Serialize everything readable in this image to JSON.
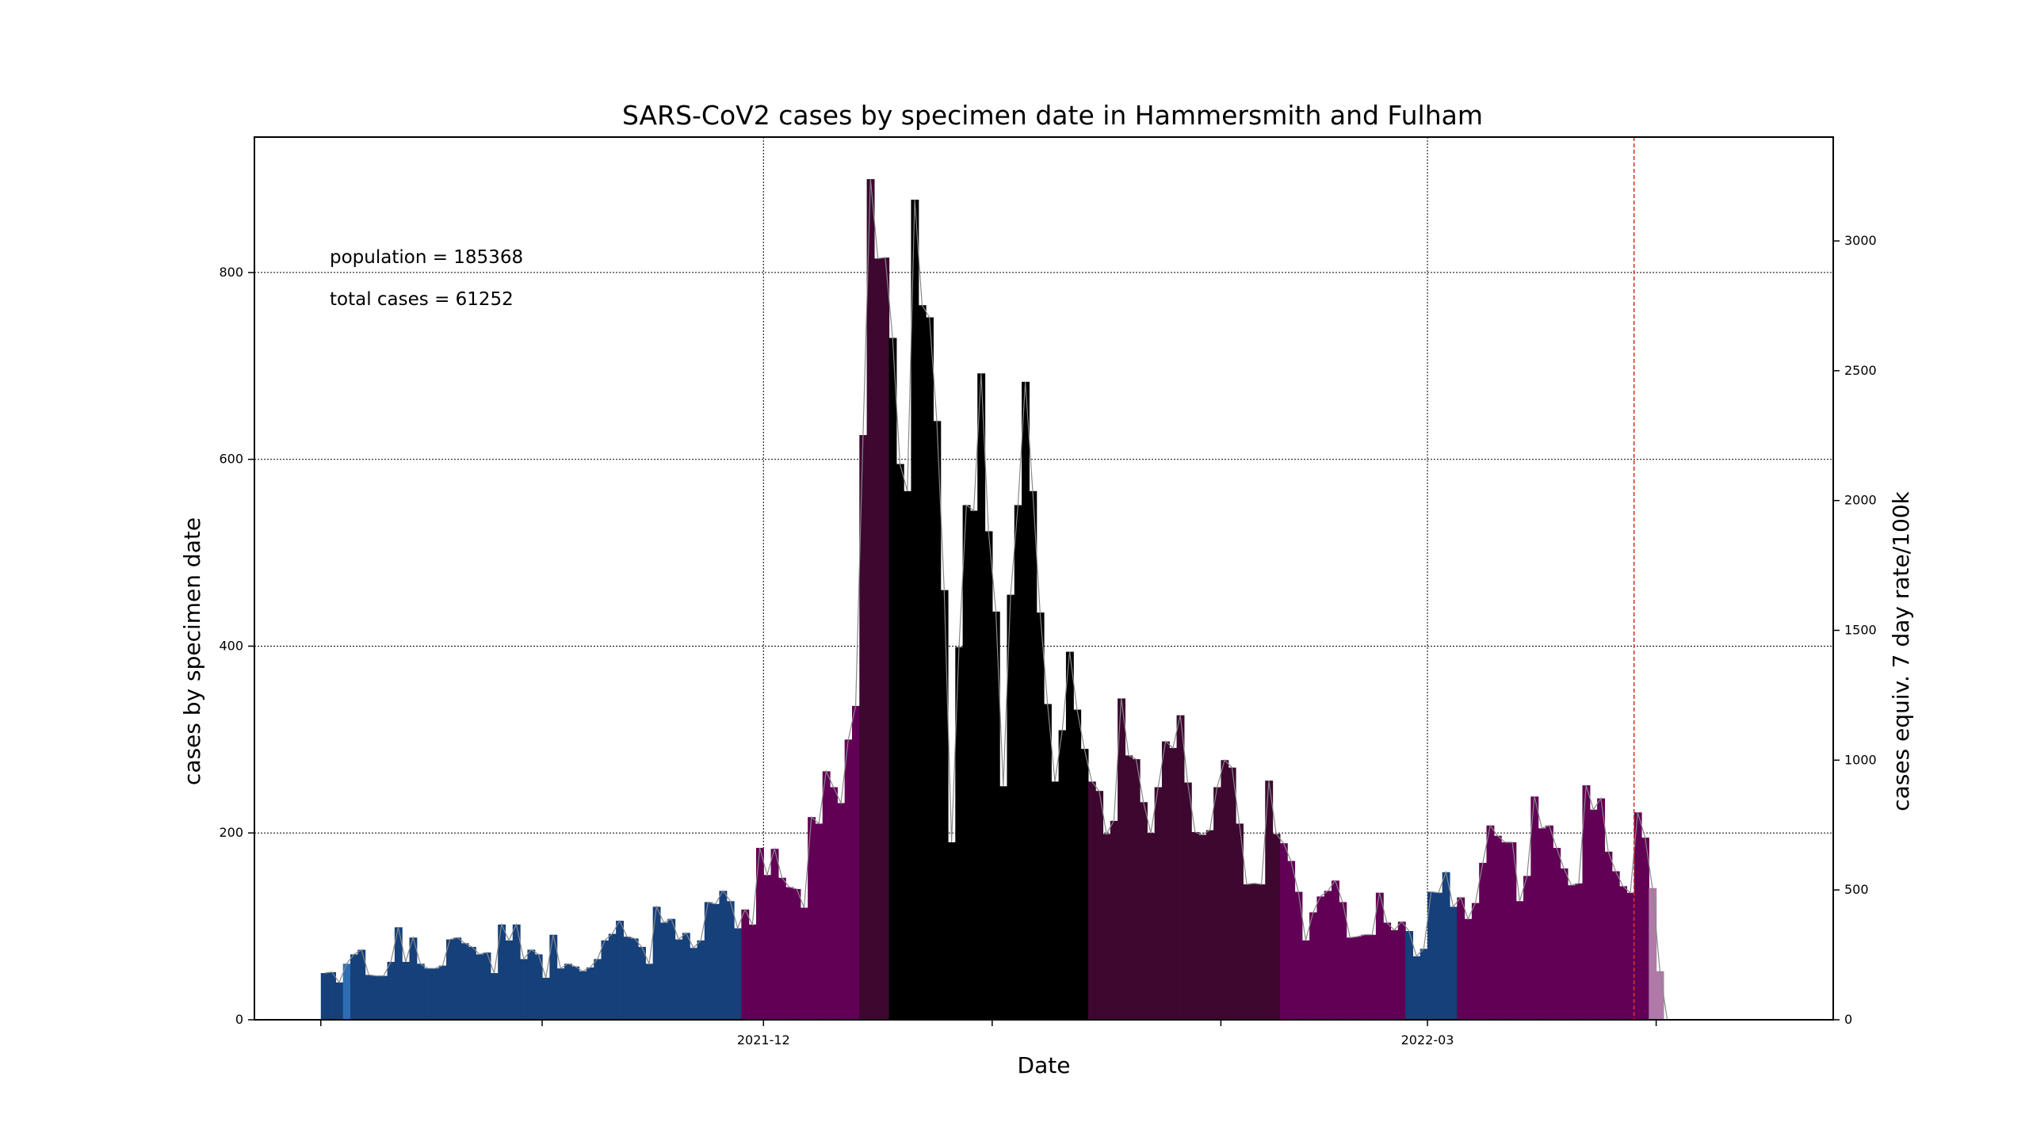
{
  "chart_data": {
    "type": "bar",
    "title": "SARS-CoV2 cases by specimen date in Hammersmith and Fulham",
    "xlabel": "Date",
    "ylabel": "cases by specimen date",
    "y2label": "cases equiv. 7 day rate/100k",
    "annotations": [
      "population = 185368",
      "total cases = 61252"
    ],
    "x_start": "2021-10-02",
    "x_range": [
      "2021-09-23",
      "2022-04-25"
    ],
    "ylim": [
      0,
      945
    ],
    "y2lim": [
      0,
      3400
    ],
    "y_ticks": [
      0,
      200,
      400,
      600,
      800
    ],
    "y2_ticks": [
      0,
      500,
      1000,
      1500,
      2000,
      2500,
      3000
    ],
    "x_ticks": [
      {
        "date": "2021-10-02",
        "label": ""
      },
      {
        "date": "2021-11-01",
        "label": ""
      },
      {
        "date": "2021-12-01",
        "label": "2021-12"
      },
      {
        "date": "2022-01-01",
        "label": ""
      },
      {
        "date": "2022-02-01",
        "label": ""
      },
      {
        "date": "2022-03-01",
        "label": "2022-03"
      },
      {
        "date": "2022-04-01",
        "label": ""
      }
    ],
    "grid": true,
    "reference_line_date": "2022-03-29",
    "colors": {
      "low": "#15407a",
      "low_highlight": "#2e6db3",
      "mid": "#620055",
      "high": "#3d0730",
      "peak": "#000000",
      "provisional": "#b07aa8",
      "trend_line": "#888888",
      "reference_line": "#e0302a"
    },
    "values": [
      50,
      51,
      40,
      60,
      70,
      75,
      48,
      47,
      47,
      62,
      99,
      62,
      88,
      60,
      55,
      55,
      58,
      86,
      88,
      82,
      78,
      70,
      72,
      50,
      102,
      85,
      102,
      65,
      75,
      70,
      45,
      91,
      55,
      60,
      57,
      52,
      56,
      65,
      85,
      92,
      106,
      89,
      87,
      78,
      60,
      121,
      104,
      108,
      86,
      93,
      77,
      85,
      126,
      124,
      138,
      127,
      98,
      118,
      102,
      184,
      155,
      183,
      152,
      142,
      140,
      120,
      217,
      210,
      266,
      249,
      232,
      300,
      336,
      626,
      900,
      815,
      816,
      730,
      595,
      566,
      878,
      765,
      752,
      641,
      460,
      190,
      399,
      551,
      545,
      692,
      523,
      437,
      250,
      455,
      551,
      683,
      566,
      436,
      338,
      255,
      310,
      394,
      332,
      290,
      255,
      245,
      199,
      213,
      344,
      283,
      279,
      233,
      200,
      249,
      298,
      291,
      326,
      254,
      201,
      198,
      203,
      249,
      278,
      270,
      210,
      145,
      146,
      145,
      256,
      199,
      189,
      170,
      137,
      85,
      115,
      132,
      138,
      149,
      126,
      88,
      89,
      91,
      91,
      136,
      104,
      96,
      105,
      95,
      68,
      76,
      137,
      136,
      158,
      121,
      131,
      108,
      125,
      168,
      208,
      197,
      190,
      190,
      127,
      154,
      239,
      205,
      208,
      184,
      162,
      144,
      146,
      251,
      225,
      237,
      180,
      159,
      143,
      136,
      222,
      195,
      141,
      52,
      0
    ],
    "categories_by_index": [
      {
        "from": 0,
        "to": 2,
        "level": "low"
      },
      {
        "from": 3,
        "to": 3,
        "level": "low_highlight"
      },
      {
        "from": 4,
        "to": 56,
        "level": "low"
      },
      {
        "from": 57,
        "to": 72,
        "level": "mid"
      },
      {
        "from": 73,
        "to": 76,
        "level": "high"
      },
      {
        "from": 77,
        "to": 103,
        "level": "peak"
      },
      {
        "from": 104,
        "to": 129,
        "level": "high"
      },
      {
        "from": 130,
        "to": 146,
        "level": "mid"
      },
      {
        "from": 147,
        "to": 153,
        "level": "low"
      },
      {
        "from": 154,
        "to": 179,
        "level": "mid"
      },
      {
        "from": 180,
        "to": 182,
        "level": "provisional"
      }
    ]
  }
}
